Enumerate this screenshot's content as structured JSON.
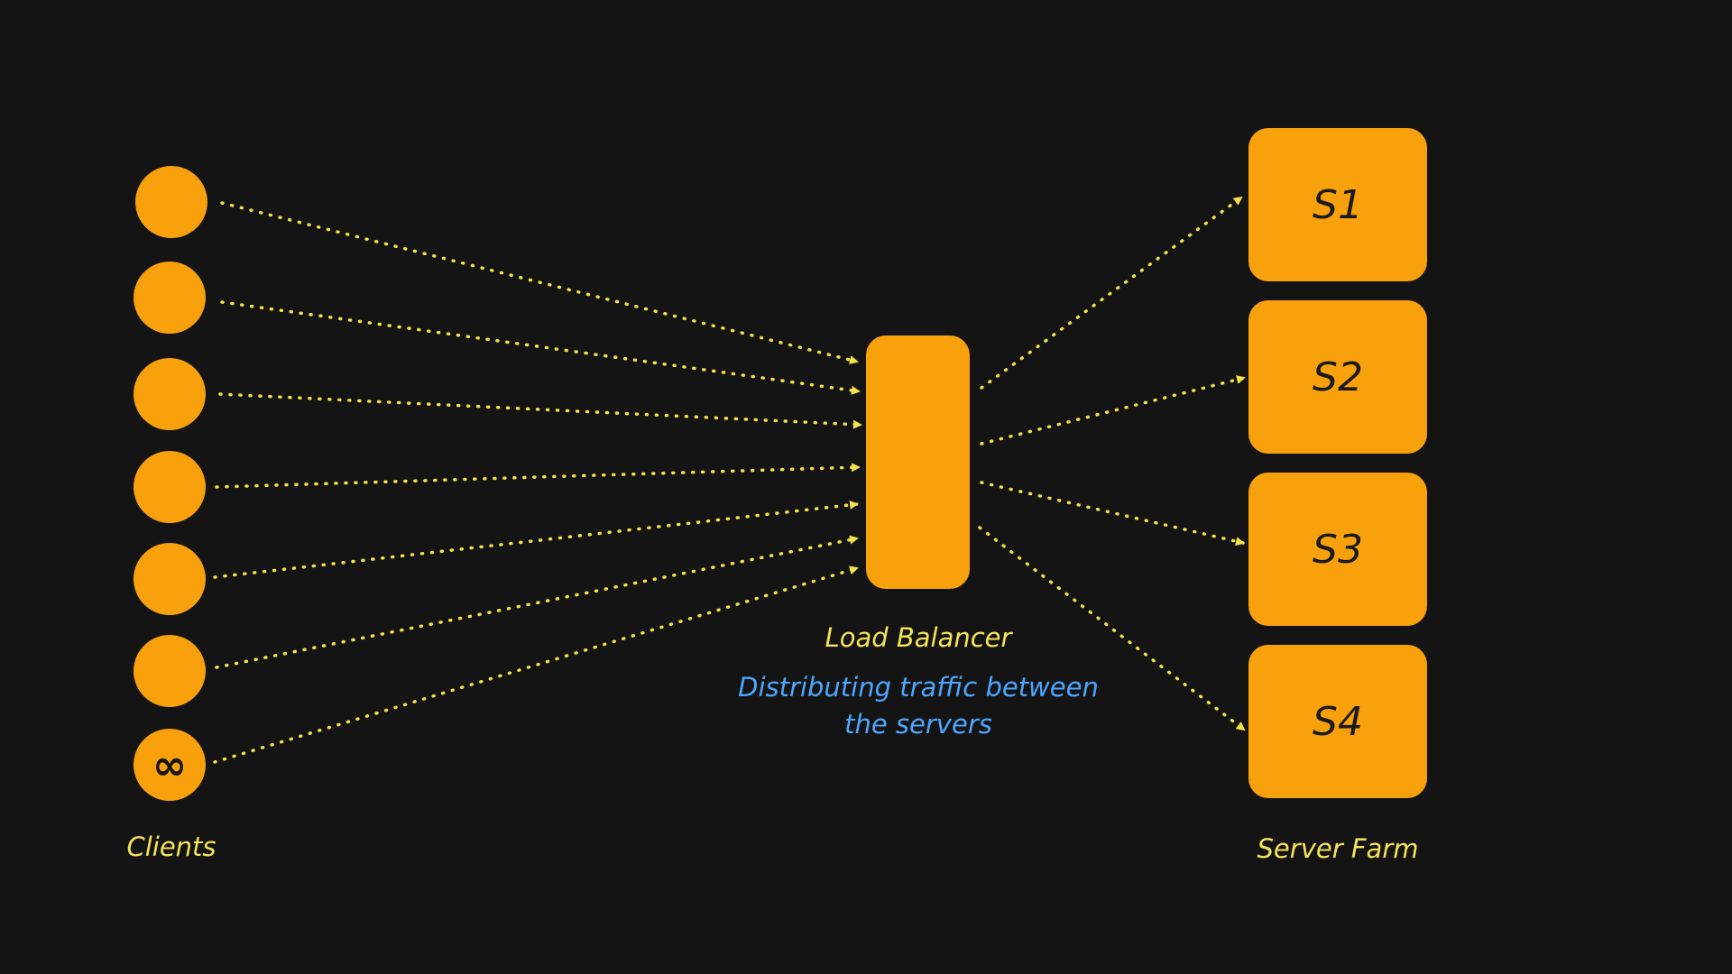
{
  "colors": {
    "background": "#141414",
    "node_fill": "#f8a10c",
    "arrow": "#f3e24a",
    "label_yellow": "#f5e35b",
    "label_blue": "#4da6ff"
  },
  "clients": {
    "label": "Clients",
    "nodes": [
      "",
      "",
      "",
      "",
      "",
      "",
      "∞"
    ]
  },
  "load_balancer": {
    "label": "Load Balancer",
    "description_line1": "Distributing traffic between",
    "description_line2": "the servers"
  },
  "server_farm": {
    "label": "Server Farm",
    "servers": [
      "S1",
      "S2",
      "S3",
      "S4"
    ]
  }
}
